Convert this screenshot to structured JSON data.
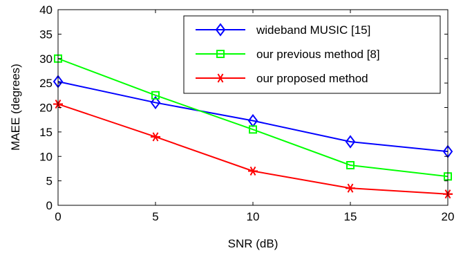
{
  "chart_data": {
    "type": "line",
    "xlabel": "SNR (dB)",
    "ylabel": "MAEE (degrees)",
    "xlim": [
      0,
      20
    ],
    "ylim": [
      0,
      40
    ],
    "xticks": [
      0,
      5,
      10,
      15,
      20
    ],
    "yticks": [
      0,
      5,
      10,
      15,
      20,
      25,
      30,
      35,
      40
    ],
    "x": [
      0,
      5,
      10,
      15,
      20
    ],
    "grid": false,
    "legend_position": "top-right",
    "series": [
      {
        "name": "wideband MUSIC [15]",
        "values": [
          25.3,
          21.0,
          17.3,
          13.0,
          11.0
        ],
        "color": "#0000ff",
        "marker": "diamond"
      },
      {
        "name": "our previous method [8]",
        "values": [
          30.0,
          22.5,
          15.5,
          8.2,
          5.9
        ],
        "color": "#00ff00",
        "marker": "square"
      },
      {
        "name": "our proposed method",
        "values": [
          20.7,
          14.0,
          7.0,
          3.5,
          2.3
        ],
        "color": "#ff0000",
        "marker": "asterisk"
      }
    ]
  }
}
